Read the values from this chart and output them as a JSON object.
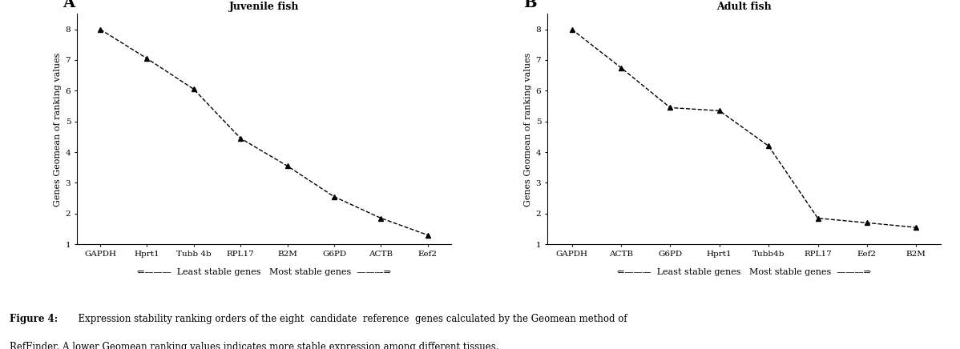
{
  "panel_A": {
    "title": "Juvenile fish",
    "x_labels": [
      "GAPDH",
      "Hprt1",
      "Tubb 4b",
      "RPL17",
      "B2M",
      "G6PD",
      "ACTB",
      "Eef2"
    ],
    "y_values": [
      8.0,
      7.05,
      6.05,
      4.45,
      3.55,
      2.55,
      1.85,
      1.3
    ],
    "ylabel": "Genes Geomean of ranking values"
  },
  "panel_B": {
    "title": "Adult fish",
    "x_labels": [
      "GAPDH",
      "ACTB",
      "G6PD",
      "Hprt1",
      "Tubb4b",
      "RPL17",
      "Eef2",
      "B2M"
    ],
    "y_values": [
      8.0,
      6.75,
      5.45,
      5.35,
      4.2,
      1.85,
      1.7,
      1.55
    ],
    "ylabel": "Genes Geomean of ranking values"
  },
  "ylim": [
    1,
    8.5
  ],
  "yticks": [
    1,
    2,
    3,
    4,
    5,
    6,
    7,
    8
  ],
  "line_color": "#000000",
  "marker": "^",
  "marker_size": 5,
  "marker_color": "#000000",
  "line_style": "--",
  "line_width": 1.0,
  "panel_label_A": "A",
  "panel_label_B": "B",
  "bg_color": "#ffffff",
  "text_color": "#000000",
  "title_fontsize": 9,
  "tick_fontsize": 7.5,
  "ylabel_fontsize": 8,
  "panel_label_fontsize": 14,
  "arrow_text_fontsize": 8,
  "caption_bold": "Figure 4:",
  "caption_normal": "  Expression stability ranking orders of the eight  candidate  reference  genes calculated by the Geomean method of",
  "caption_line2": "RefFinder. A lower Geomean ranking values indicates more stable expression among different tissues.",
  "caption_fontsize": 8.5
}
